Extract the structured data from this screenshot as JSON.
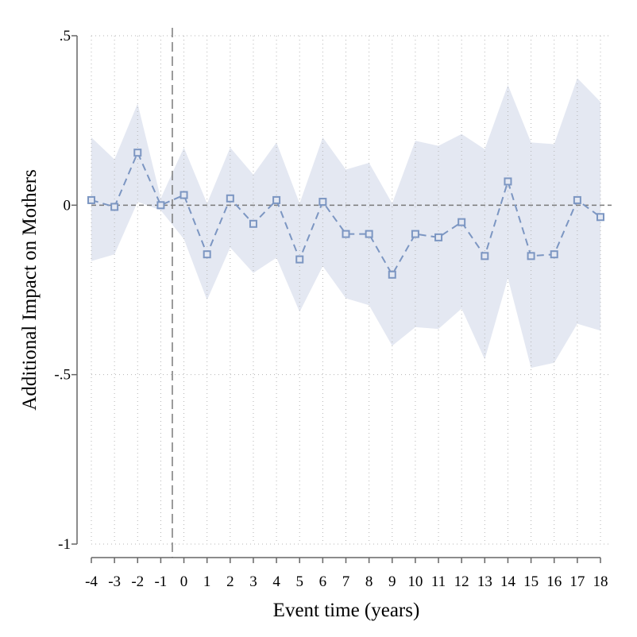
{
  "chart_data": {
    "type": "line",
    "title": "",
    "xlabel": "Event time (years)",
    "ylabel": "Additional Impact on Mothers",
    "xlim": [
      -4,
      18
    ],
    "ylim": [
      -1,
      0.5
    ],
    "x_ticks": [
      -4,
      -3,
      -2,
      -1,
      0,
      1,
      2,
      3,
      4,
      5,
      6,
      7,
      8,
      9,
      10,
      11,
      12,
      13,
      14,
      15,
      16,
      17,
      18
    ],
    "x_tick_labels": [
      "-4",
      "-3",
      "-2",
      "-1",
      "0",
      "1",
      "2",
      "3",
      "4",
      "5",
      "6",
      "7",
      "8",
      "9",
      "10",
      "11",
      "12",
      "13",
      "14",
      "15",
      "16",
      "17",
      "18"
    ],
    "y_ticks": [
      -1,
      -0.5,
      0,
      0.5
    ],
    "y_tick_labels": [
      "-1",
      "-.5",
      "0",
      ".5"
    ],
    "grid": true,
    "reference_lines": {
      "horizontal_y": 0,
      "vertical_x": -0.5
    },
    "colors": {
      "series": "#7c96c2",
      "band": "#e4e8f2",
      "grid": "#b4b4b4",
      "reference": "#7a7a7a",
      "axis": "#666666"
    },
    "series": [
      {
        "x": [
          -4,
          -3,
          -2,
          -1,
          0,
          1,
          2,
          3,
          4,
          5,
          6,
          7,
          8,
          9,
          10,
          11,
          12,
          13,
          14,
          15,
          16,
          17,
          18
        ],
        "values": [
          0.015,
          -0.005,
          0.155,
          0,
          0.03,
          -0.145,
          0.02,
          -0.055,
          0.015,
          -0.16,
          0.01,
          -0.085,
          -0.085,
          -0.205,
          -0.085,
          -0.095,
          -0.05,
          -0.15,
          0.07,
          -0.15,
          -0.145,
          0.015,
          -0.035
        ],
        "ci_upper": [
          0.2,
          0.135,
          0.3,
          0.02,
          0.17,
          0.005,
          0.17,
          0.09,
          0.185,
          0.005,
          0.2,
          0.105,
          0.125,
          0.005,
          0.19,
          0.175,
          0.21,
          0.165,
          0.355,
          0.185,
          0.18,
          0.375,
          0.305
        ],
        "ci_lower": [
          -0.165,
          -0.145,
          0.01,
          -0.015,
          -0.1,
          -0.28,
          -0.125,
          -0.2,
          -0.155,
          -0.315,
          -0.18,
          -0.275,
          -0.295,
          -0.415,
          -0.36,
          -0.365,
          -0.305,
          -0.455,
          -0.215,
          -0.48,
          -0.465,
          -0.35,
          -0.37
        ]
      }
    ]
  }
}
